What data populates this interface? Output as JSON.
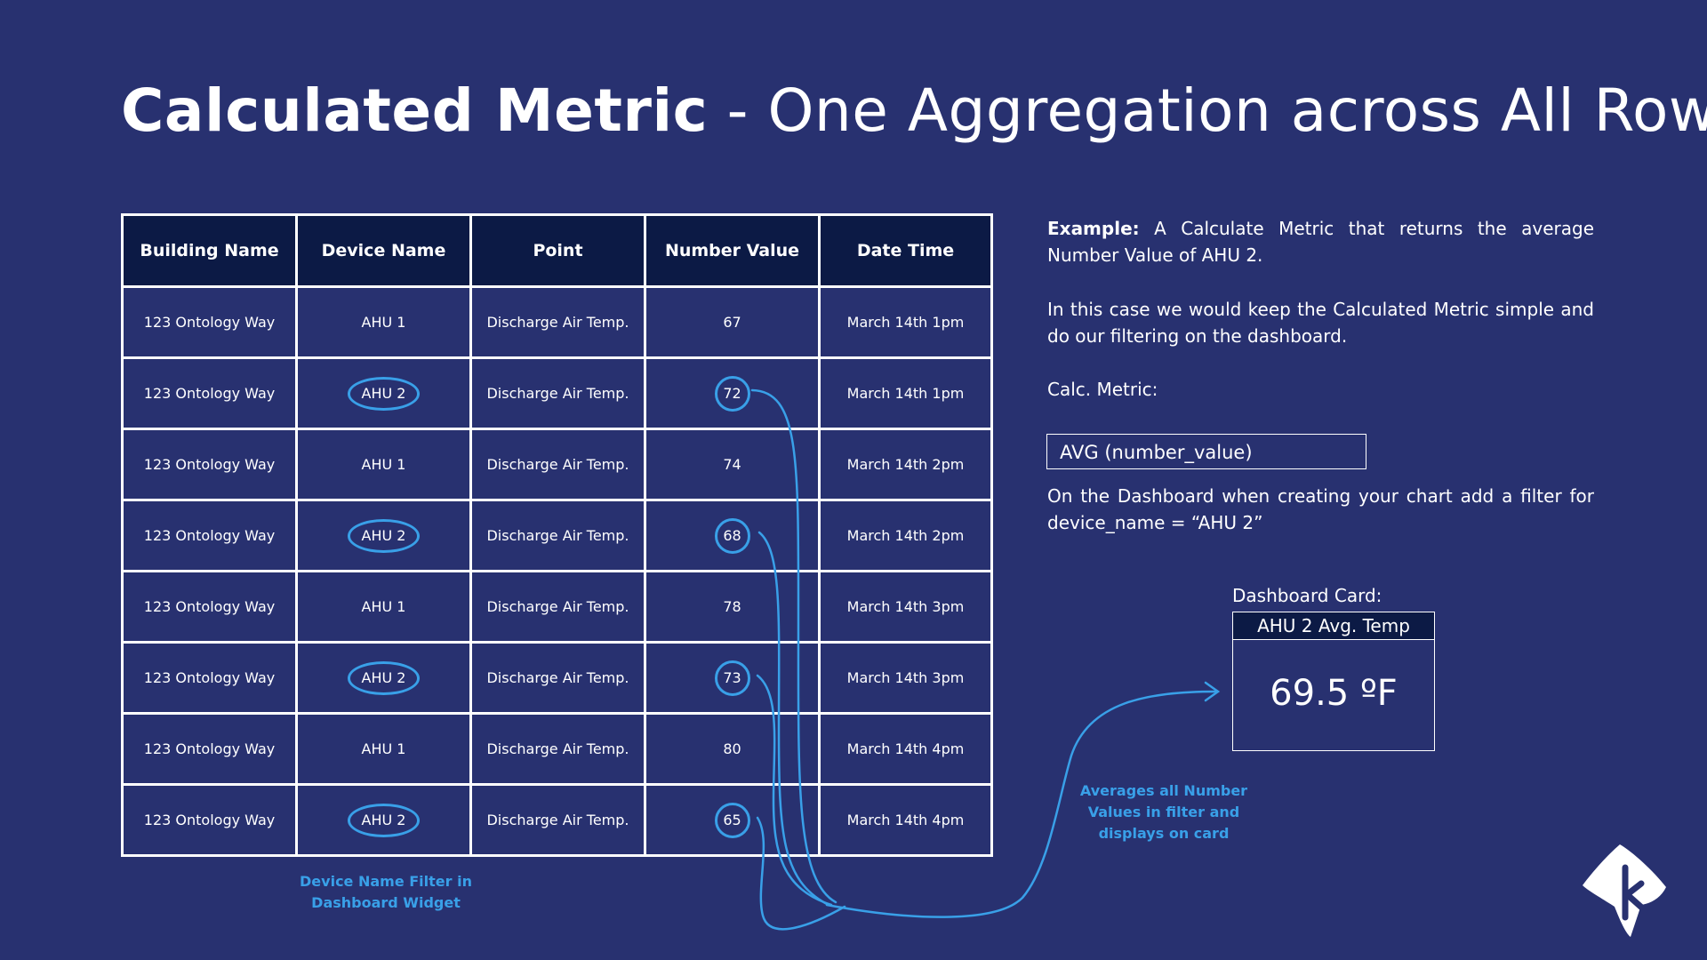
{
  "title": {
    "bold": "Calculated Metric",
    "rest": " - One Aggregation across All Rows"
  },
  "table": {
    "headers": [
      "Building Name",
      "Device Name",
      "Point",
      "Number Value",
      "Date Time"
    ],
    "rows": [
      [
        "123 Ontology Way",
        "AHU 1",
        "Discharge Air Temp.",
        "67",
        "March 14th 1pm"
      ],
      [
        "123 Ontology Way",
        "AHU 2",
        "Discharge Air Temp.",
        "72",
        "March 14th 1pm"
      ],
      [
        "123 Ontology Way",
        "AHU 1",
        "Discharge Air Temp.",
        "74",
        "March 14th 2pm"
      ],
      [
        "123 Ontology Way",
        "AHU 2",
        "Discharge Air Temp.",
        "68",
        "March 14th 2pm"
      ],
      [
        "123 Ontology Way",
        "AHU 1",
        "Discharge Air Temp.",
        "78",
        "March 14th 3pm"
      ],
      [
        "123 Ontology Way",
        "AHU 2",
        "Discharge Air Temp.",
        "73",
        "March 14th 3pm"
      ],
      [
        "123 Ontology Way",
        "AHU 1",
        "Discharge Air Temp.",
        "80",
        "March 14th 4pm"
      ],
      [
        "123 Ontology Way",
        "AHU 2",
        "Discharge Air Temp.",
        "65",
        "March 14th 4pm"
      ]
    ]
  },
  "captions": {
    "device_filter": "Device Name Filter in Dashboard Widget",
    "averages": "Averages all Number Values in filter and displays on card"
  },
  "explanation": {
    "example_label": "Example:",
    "example_text": " A Calculate Metric that returns the average Number Value of AHU 2.",
    "paragraph2": "In this case we would keep the Calculated Metric simple and do our filtering on the dashboard.",
    "calc_label": "Calc. Metric:",
    "formula": "AVG (number_value)",
    "paragraph3": "On the Dashboard when creating your chart add a filter for device_name = “AHU 2”"
  },
  "card": {
    "label": "Dashboard Card:",
    "title": "AHU 2 Avg. Temp",
    "value": "69.5 ºF"
  },
  "colors": {
    "background": "#283170",
    "header_fill": "#0c1a45",
    "accent": "#39a0e8",
    "text": "#ffffff"
  },
  "icons": {
    "logo": "logo-k-icon"
  }
}
